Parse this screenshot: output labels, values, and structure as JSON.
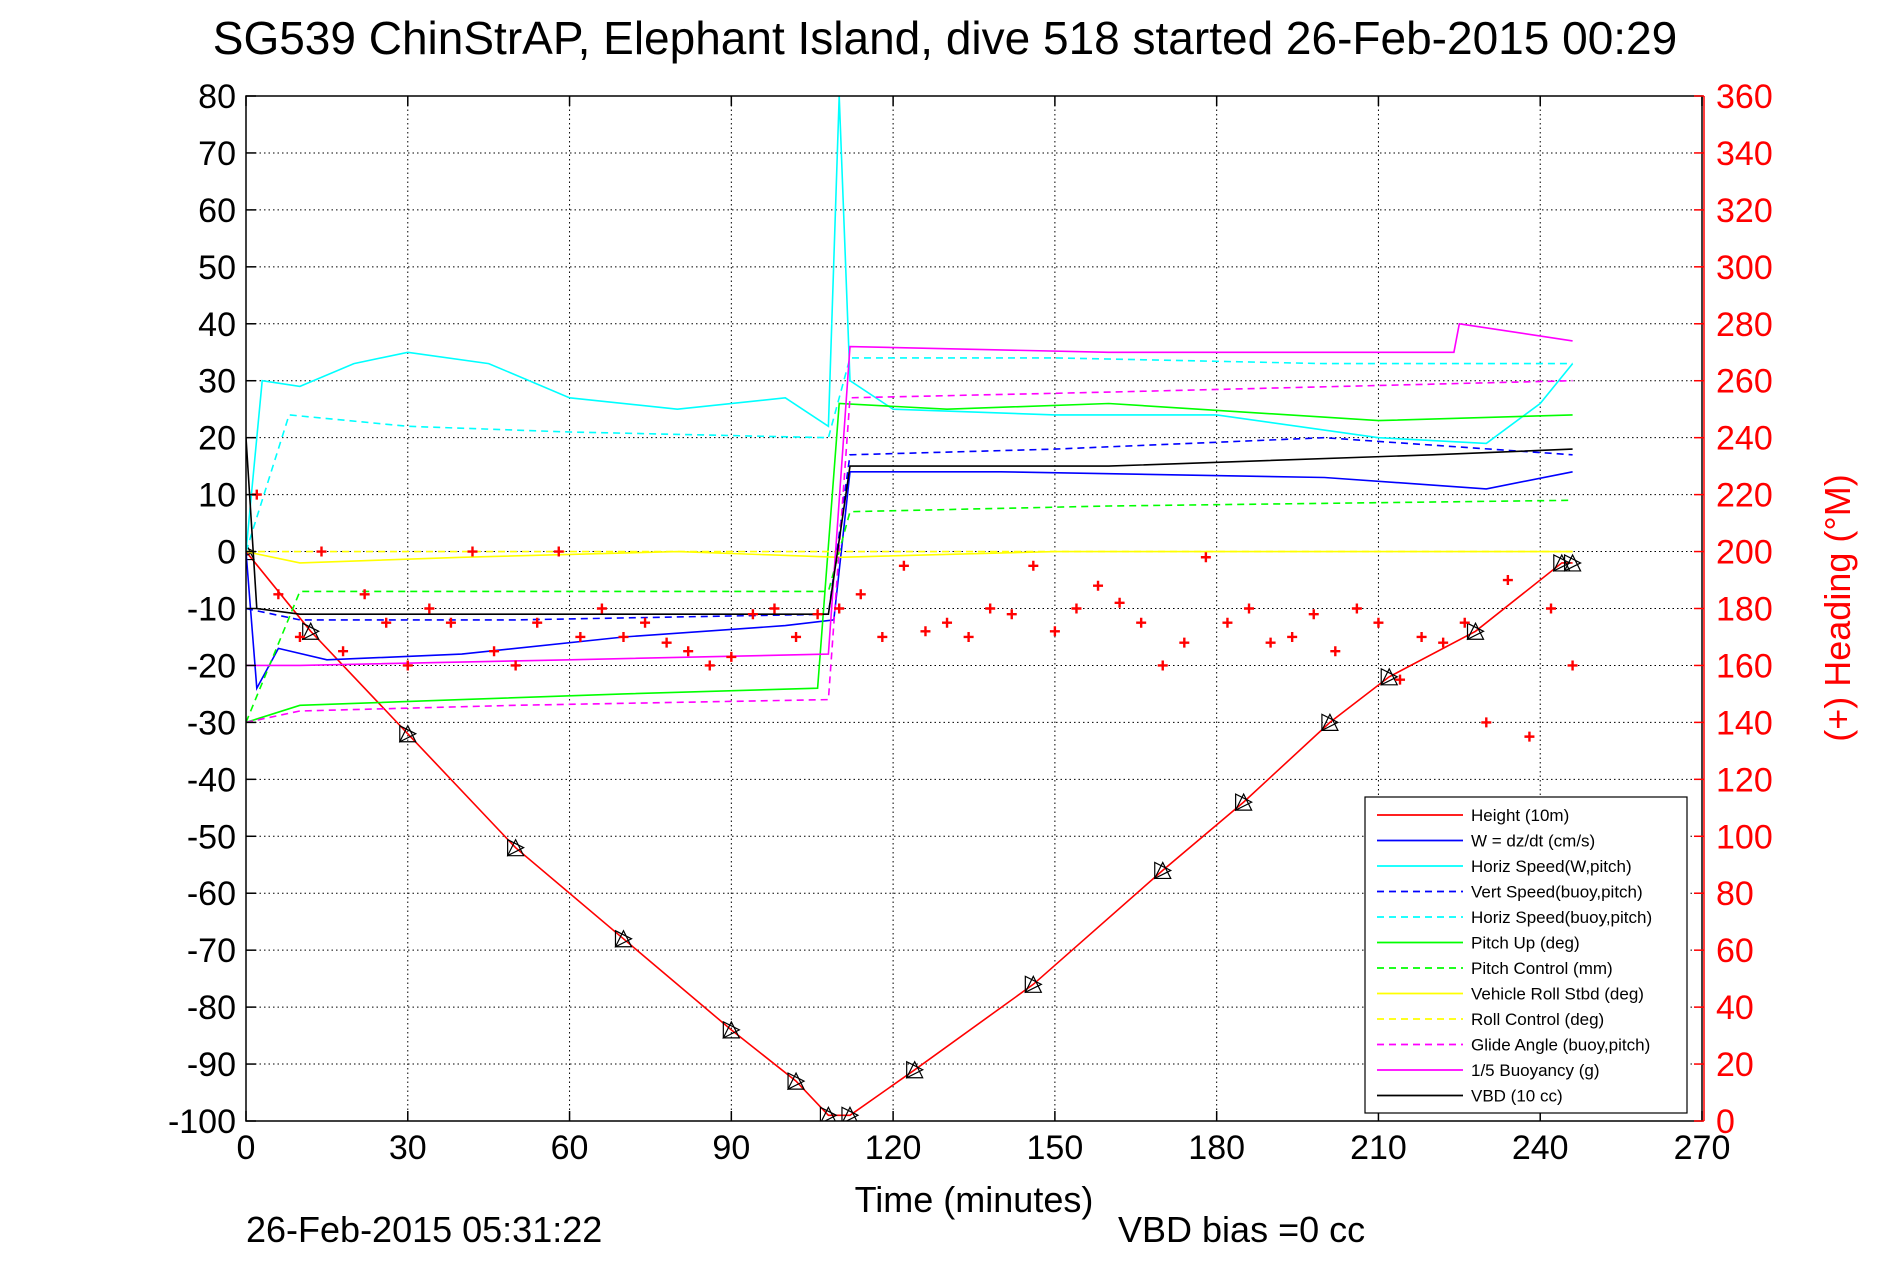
{
  "chart_data": {
    "type": "line",
    "title": "SG539 ChinStrAP, Elephant Island, dive 518 started 26-Feb-2015 00:29",
    "xlabel": "Time (minutes)",
    "ylabel_right": "(+) Heading (°M)",
    "xlim": [
      0,
      270
    ],
    "ylim": [
      -100,
      80
    ],
    "ylim_right": [
      0,
      360
    ],
    "x_ticks": [
      "0",
      "30",
      "60",
      "90",
      "120",
      "150",
      "180",
      "210",
      "240",
      "270"
    ],
    "y_ticks": [
      "80",
      "70",
      "60",
      "50",
      "40",
      "30",
      "20",
      "10",
      "0",
      "-10",
      "-20",
      "-30",
      "-40",
      "-50",
      "-60",
      "-70",
      "-80",
      "-90",
      "-100"
    ],
    "y_ticks_right": [
      "360",
      "340",
      "320",
      "300",
      "280",
      "260",
      "240",
      "220",
      "200",
      "180",
      "160",
      "140",
      "120",
      "100",
      "80",
      "60",
      "40",
      "20",
      "0"
    ],
    "grid": true,
    "legend_position": "lower-right",
    "footer_left": "26-Feb-2015 05:31:22",
    "footer_right": "VBD bias =0 cc",
    "series": [
      {
        "name": "Height (10m)",
        "color": "#ff0000",
        "style": "solid",
        "marker": "triangle",
        "x": [
          0,
          12,
          30,
          50,
          70,
          90,
          102,
          108,
          112,
          124,
          146,
          170,
          185,
          201,
          212,
          228,
          244,
          246
        ],
        "y": [
          0,
          -14,
          -32,
          -52,
          -68,
          -84,
          -93,
          -99,
          -99,
          -91,
          -76,
          -56,
          -44,
          -30,
          -22,
          -14,
          -2,
          -2
        ]
      },
      {
        "name": "W = dz/dt (cm/s)",
        "color": "#0000ff",
        "style": "solid",
        "x": [
          0,
          2,
          6,
          15,
          40,
          70,
          100,
          109,
          112,
          140,
          200,
          230,
          246
        ],
        "y": [
          0,
          -24,
          -17,
          -19,
          -18,
          -15,
          -13,
          -12,
          14,
          14,
          13,
          11,
          14
        ]
      },
      {
        "name": "Horiz Speed(W,pitch)",
        "color": "#00ffff",
        "style": "solid",
        "x": [
          0,
          3,
          10,
          20,
          30,
          45,
          60,
          80,
          100,
          108,
          110,
          112,
          120,
          150,
          180,
          210,
          230,
          240,
          246
        ],
        "y": [
          0,
          30,
          29,
          33,
          35,
          33,
          27,
          25,
          27,
          22,
          80,
          30,
          25,
          24,
          24,
          20,
          19,
          26,
          33
        ]
      },
      {
        "name": "Vert Speed(buoy,pitch)",
        "color": "#0000ff",
        "style": "dashed",
        "x": [
          0,
          10,
          50,
          108,
          112,
          150,
          200,
          246
        ],
        "y": [
          -10,
          -12,
          -12,
          -11,
          17,
          18,
          20,
          17
        ]
      },
      {
        "name": "Horiz Speed(buoy,pitch)",
        "color": "#00ffff",
        "style": "dashed",
        "x": [
          0,
          8,
          30,
          60,
          108,
          112,
          150,
          200,
          240,
          246
        ],
        "y": [
          0,
          24,
          22,
          21,
          20,
          34,
          34,
          33,
          33,
          33
        ]
      },
      {
        "name": "Pitch Up (deg)",
        "color": "#00ff00",
        "style": "solid",
        "x": [
          0,
          10,
          40,
          70,
          106,
          110,
          130,
          160,
          210,
          246
        ],
        "y": [
          -30,
          -27,
          -26,
          -25,
          -24,
          26,
          25,
          26,
          23,
          24
        ]
      },
      {
        "name": "Pitch Control (mm)",
        "color": "#00ff00",
        "style": "dashed",
        "x": [
          0,
          10,
          60,
          108,
          112,
          160,
          246
        ],
        "y": [
          -30,
          -7,
          -7,
          -7,
          7,
          8,
          9
        ]
      },
      {
        "name": "Vehicle Roll Stbd (deg)",
        "color": "#ffff00",
        "style": "solid",
        "x": [
          0,
          10,
          40,
          80,
          110,
          150,
          200,
          246
        ],
        "y": [
          0,
          -2,
          -1,
          0,
          -1,
          0,
          0,
          0
        ]
      },
      {
        "name": "Roll Control (deg)",
        "color": "#ffff00",
        "style": "dashed",
        "x": [
          0,
          10,
          60,
          108,
          112,
          200,
          246
        ],
        "y": [
          0,
          0,
          0,
          0,
          0,
          0,
          0
        ]
      },
      {
        "name": "Glide Angle (buoy,pitch)",
        "color": "#ff00ff",
        "style": "dashed",
        "x": [
          0,
          10,
          50,
          108,
          112,
          160,
          246
        ],
        "y": [
          -30,
          -28,
          -27,
          -26,
          27,
          28,
          30
        ]
      },
      {
        "name": "1/5 Buoyancy (g)",
        "color": "#ff00ff",
        "style": "solid",
        "x": [
          0,
          10,
          60,
          108,
          112,
          160,
          224,
          225,
          246
        ],
        "y": [
          -20,
          -20,
          -19,
          -18,
          36,
          35,
          35,
          40,
          37
        ]
      },
      {
        "name": "VBD (10 cc)",
        "color": "#000000",
        "style": "solid",
        "x": [
          0,
          2,
          10,
          60,
          108,
          112,
          160,
          220,
          246
        ],
        "y": [
          20,
          -10,
          -11,
          -11,
          -11,
          15,
          15,
          17,
          18
        ]
      },
      {
        "name": "Heading",
        "color": "#ff0000",
        "style": "markers",
        "marker": "plus",
        "axis": "right",
        "x": [
          2,
          6,
          10,
          14,
          18,
          22,
          26,
          30,
          34,
          38,
          42,
          46,
          50,
          54,
          58,
          62,
          66,
          70,
          74,
          78,
          82,
          86,
          90,
          94,
          98,
          102,
          106,
          110,
          114,
          118,
          122,
          126,
          130,
          134,
          138,
          142,
          146,
          150,
          154,
          158,
          162,
          166,
          170,
          174,
          178,
          182,
          186,
          190,
          194,
          198,
          202,
          206,
          210,
          214,
          218,
          222,
          226,
          230,
          234,
          238,
          242,
          246
        ],
        "y": [
          220,
          185,
          170,
          200,
          165,
          185,
          175,
          160,
          180,
          175,
          200,
          165,
          160,
          175,
          200,
          170,
          180,
          170,
          175,
          168,
          165,
          160,
          163,
          178,
          180,
          170,
          178,
          180,
          185,
          170,
          195,
          172,
          175,
          170,
          180,
          178,
          195,
          172,
          180,
          188,
          182,
          175,
          160,
          168,
          198,
          175,
          180,
          168,
          170,
          178,
          165,
          180,
          175,
          155,
          170,
          168,
          175,
          140,
          190,
          135,
          180,
          160
        ]
      }
    ]
  }
}
